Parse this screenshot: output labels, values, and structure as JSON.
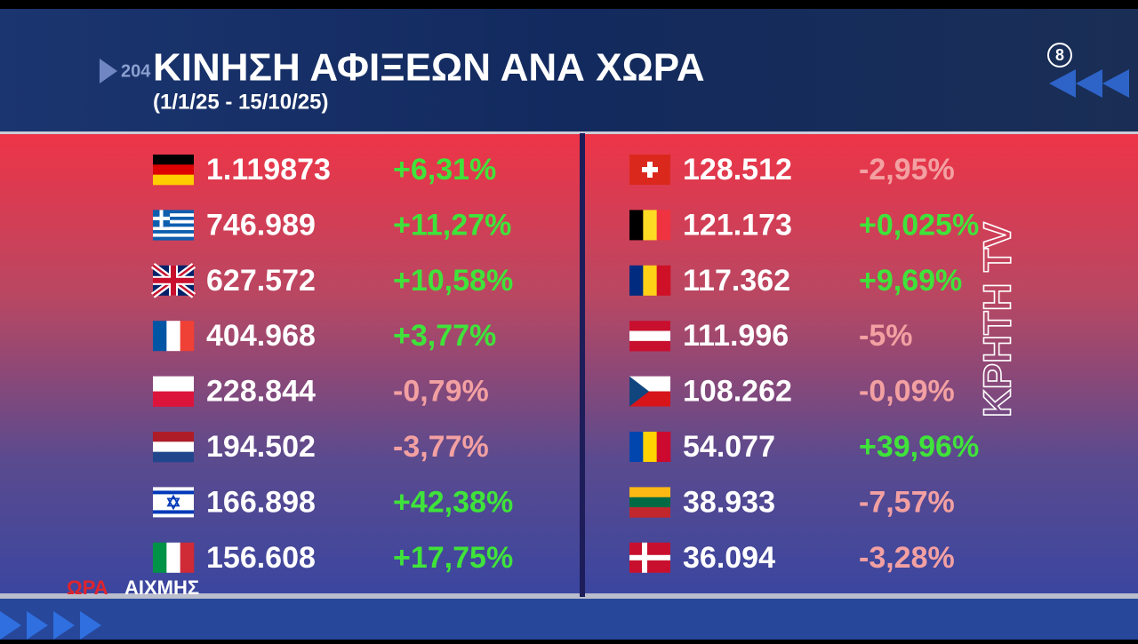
{
  "header": {
    "title": "ΚΙΝΗΣΗ ΑΦΙΞΕΩΝ ΑΝΑ ΧΩΡΑ",
    "subtitle": "(1/1/25 - 15/10/25)"
  },
  "table": {
    "left": [
      {
        "value": "1.119873",
        "change": "+6,31%"
      },
      {
        "value": "746.989",
        "change": "+11,27%"
      },
      {
        "value": "627.572",
        "change": "+10,58%"
      },
      {
        "value": "404.968",
        "change": "+3,77%"
      },
      {
        "value": "228.844",
        "change": "-0,79%"
      },
      {
        "value": "194.502",
        "change": "-3,77%"
      },
      {
        "value": "166.898",
        "change": "+42,38%"
      },
      {
        "value": "156.608",
        "change": "+17,75%"
      }
    ],
    "right": [
      {
        "value": "128.512",
        "change": "-2,95%"
      },
      {
        "value": "121.173",
        "change": "+0,025%"
      },
      {
        "value": "117.362",
        "change": "+9,69%"
      },
      {
        "value": "111.996",
        "change": "-5%"
      },
      {
        "value": "108.262",
        "change": "-0,09%"
      },
      {
        "value": "54.077",
        "change": "+39,96%"
      },
      {
        "value": "38.933",
        "change": "-7,57%"
      },
      {
        "value": "36.094",
        "change": "-3,28%"
      }
    ]
  },
  "overlay": {
    "ticker_fragment": "204",
    "badge": "8",
    "channel_logo": "ΚΡΗΤΗ TV",
    "show_name_1": "ΩΡΑ",
    "show_name_2": "ΑΙΧΜΗΣ"
  }
}
